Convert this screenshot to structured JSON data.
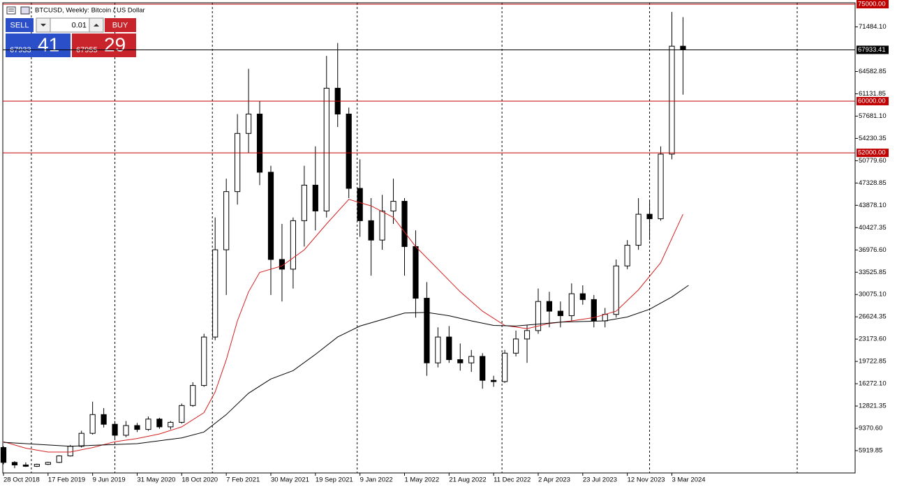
{
  "header": {
    "title": "BTCUSD, Weekly:  Bitcoin / US Dollar"
  },
  "trade_panel": {
    "sell_label": "SELL",
    "buy_label": "BUY",
    "volume": "0.01",
    "bid_main": "67933",
    "bid_pips": "41",
    "ask_main": "67955",
    "ask_pips": "29"
  },
  "chart_data": {
    "type": "candlestick",
    "xlim": [
      -0.25,
      305.8
    ],
    "ylim": [
      2465.8,
      75215.9
    ],
    "xticks": [
      {
        "value": 0,
        "label": "28 Oct 2018"
      },
      {
        "value": 16,
        "label": "17 Feb 2019"
      },
      {
        "value": 32,
        "label": "9 Jun 2019"
      },
      {
        "value": 48,
        "label": "31 May 2020"
      },
      {
        "value": 64,
        "label": "18 Oct 2020"
      },
      {
        "value": 80,
        "label": "7 Feb 2021"
      },
      {
        "value": 96,
        "label": "30 May 2021"
      },
      {
        "value": 112,
        "label": "19 Sep 2021"
      },
      {
        "value": 128,
        "label": "9 Jan 2022"
      },
      {
        "value": 144,
        "label": "1 May 2022"
      },
      {
        "value": 160,
        "label": "21 Aug 2022"
      },
      {
        "value": 176,
        "label": "11 Dec 2022"
      },
      {
        "value": 192,
        "label": "2 Apr 2023"
      },
      {
        "value": 208,
        "label": "23 Jul 2023"
      },
      {
        "value": 224,
        "label": "12 Nov 2023"
      },
      {
        "value": 240,
        "label": "3 Mar 2024"
      }
    ],
    "yticks": [
      {
        "value": 71484.1,
        "label": "71484.10"
      },
      64582.85,
      61131.85,
      {
        "value": 57681.1,
        "label": "57681.10"
      },
      54230.35,
      {
        "value": 50779.6,
        "label": "50779.60"
      },
      47328.85,
      {
        "value": 43878.1,
        "label": "43878.10"
      },
      40427.35,
      {
        "value": 36976.6,
        "label": "36976.60"
      },
      33525.85,
      {
        "value": 30075.1,
        "label": "30075.10"
      },
      26624.35,
      {
        "value": 23173.6,
        "label": "23173.60"
      },
      19722.85,
      {
        "value": 16272.1,
        "label": "16272.10"
      },
      12821.35,
      {
        "value": 9370.6,
        "label": "9370.60"
      },
      5919.85
    ],
    "vgrid": [
      10,
      40,
      75,
      127,
      179,
      232,
      285
    ],
    "hlines": [
      {
        "value": 75000,
        "label": "75000.00",
        "color": "#c00000"
      },
      {
        "value": 67933.41,
        "label": "67933.41",
        "color": "#000000"
      },
      {
        "value": 60000,
        "label": "60000.00",
        "color": "#c00000"
      },
      {
        "value": 52000,
        "label": "52000.00",
        "color": "#c00000"
      }
    ],
    "candles": {
      "x": [
        0,
        4,
        8,
        12,
        16,
        20,
        24,
        28,
        32,
        36,
        40,
        44,
        48,
        52,
        56,
        60,
        64,
        68,
        72,
        76,
        80,
        84,
        88,
        92,
        96,
        100,
        104,
        108,
        112,
        116,
        120,
        124,
        128,
        132,
        136,
        140,
        144,
        148,
        152,
        156,
        160,
        164,
        168,
        172,
        176,
        180,
        184,
        188,
        192,
        196,
        200,
        204,
        208,
        212,
        216,
        220,
        224,
        228,
        232,
        236,
        240,
        244
      ],
      "open": [
        6400,
        4100,
        3700,
        3500,
        3800,
        4100,
        5100,
        6600,
        8600,
        11500,
        10000,
        8300,
        9800,
        9200,
        10800,
        9600,
        10300,
        12900,
        16000,
        23500,
        37000,
        46000,
        55000,
        58000,
        49000,
        35500,
        34000,
        41500,
        47000,
        43000,
        62000,
        58000,
        46500,
        41500,
        38500,
        43000,
        44500,
        37500,
        29500,
        19500,
        23500,
        20000,
        19500,
        20500,
        16800,
        16600,
        21000,
        23200,
        24500,
        29000,
        27500,
        26800,
        30200,
        29300,
        26000,
        27000,
        34500,
        37700,
        42500,
        41800,
        51800,
        68500
      ],
      "high": [
        6600,
        4300,
        4100,
        3900,
        4200,
        5200,
        6800,
        9000,
        13500,
        12500,
        10500,
        10500,
        10200,
        11200,
        11000,
        10500,
        13200,
        16500,
        24000,
        42000,
        48000,
        58000,
        65000,
        60000,
        50000,
        41000,
        42000,
        50000,
        53000,
        67000,
        69000,
        59000,
        51000,
        45000,
        45500,
        48000,
        45000,
        40000,
        32000,
        25000,
        25200,
        22500,
        21500,
        21000,
        17500,
        21500,
        24500,
        25300,
        31000,
        30500,
        29000,
        31800,
        31500,
        30000,
        28000,
        35500,
        38500,
        45000,
        44500,
        53000,
        73800,
        73000
      ],
      "low": [
        3800,
        3200,
        3400,
        3400,
        3700,
        4000,
        5000,
        6400,
        8400,
        9500,
        7800,
        8000,
        8800,
        9000,
        9300,
        9200,
        10100,
        12700,
        15800,
        23000,
        30000,
        44000,
        52000,
        47000,
        30000,
        29000,
        31000,
        37500,
        40000,
        42000,
        56000,
        45000,
        39000,
        33000,
        37000,
        41000,
        33000,
        26500,
        17500,
        18800,
        19500,
        18300,
        18100,
        15500,
        15800,
        16400,
        20500,
        19500,
        24000,
        25000,
        25000,
        26000,
        28500,
        25000,
        25000,
        26500,
        34000,
        37000,
        38500,
        41500,
        51000,
        61000
      ],
      "close": [
        4100,
        3700,
        3500,
        3800,
        4100,
        5100,
        6600,
        8600,
        11500,
        10000,
        8300,
        9800,
        9200,
        10800,
        9600,
        10300,
        12900,
        16000,
        23500,
        37000,
        46000,
        55000,
        58000,
        49000,
        35500,
        34000,
        41500,
        47000,
        43000,
        62000,
        58000,
        46500,
        41500,
        38500,
        43000,
        44500,
        37500,
        29500,
        19500,
        23500,
        20000,
        19500,
        20500,
        16800,
        16600,
        21000,
        23200,
        24500,
        29000,
        27500,
        26800,
        30200,
        29300,
        26000,
        27000,
        34500,
        37700,
        42500,
        41800,
        51800,
        68500,
        67933.41
      ],
      "up_color": "#ffffff",
      "down_color": "#000000",
      "outline": "#000000"
    },
    "lines": [
      {
        "color": "#d42020",
        "x": [
          0,
          8,
          16,
          24,
          32,
          40,
          48,
          56,
          64,
          72,
          76,
          80,
          84,
          88,
          92,
          100,
          108,
          116,
          124,
          132,
          140,
          148,
          156,
          164,
          172,
          180,
          188,
          196,
          204,
          212,
          220,
          228,
          236,
          244
        ],
        "values": [
          7300,
          6300,
          5700,
          5700,
          6400,
          7300,
          7800,
          8500,
          9600,
          11800,
          15000,
          20000,
          26000,
          30500,
          33500,
          34500,
          37000,
          41000,
          44800,
          43800,
          42000,
          37500,
          34000,
          30500,
          27500,
          25300,
          24800,
          25600,
          26000,
          26500,
          27500,
          30800,
          35000,
          42500
        ]
      },
      {
        "color": "#000000",
        "x": [
          0,
          24,
          48,
          64,
          72,
          80,
          88,
          96,
          104,
          112,
          120,
          128,
          136,
          144,
          152,
          160,
          168,
          176,
          184,
          192,
          200,
          208,
          216,
          224,
          232,
          240,
          246
        ],
        "values": [
          7200,
          6600,
          7000,
          7900,
          8800,
          11500,
          14800,
          17000,
          18300,
          20800,
          23500,
          25200,
          26200,
          27200,
          27300,
          26800,
          26000,
          25300,
          25200,
          25500,
          25800,
          25900,
          26000,
          26600,
          27800,
          29700,
          31500
        ]
      }
    ]
  }
}
